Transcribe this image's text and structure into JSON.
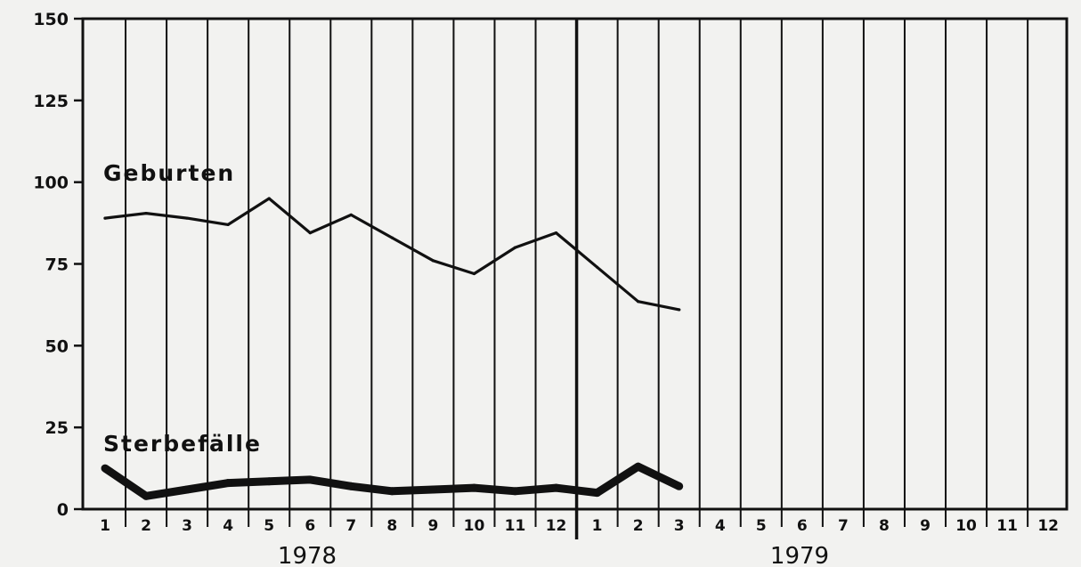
{
  "chart_data": {
    "type": "line",
    "title": "",
    "xlabel": "",
    "ylabel": "",
    "ylim": [
      0,
      150
    ],
    "yticks": [
      0,
      25,
      50,
      75,
      100,
      125,
      150
    ],
    "grid": "vertical",
    "years": [
      {
        "label": "1978",
        "months": [
          "1",
          "2",
          "3",
          "4",
          "5",
          "6",
          "7",
          "8",
          "9",
          "10",
          "11",
          "12"
        ]
      },
      {
        "label": "1979",
        "months": [
          "1",
          "2",
          "3",
          "4",
          "5",
          "6",
          "7",
          "8",
          "9",
          "10",
          "11",
          "12"
        ]
      }
    ],
    "series": [
      {
        "name": "Geburten",
        "style": "thin",
        "values": [
          89,
          90.5,
          89,
          87,
          95,
          84.5,
          90,
          83,
          76,
          72,
          80,
          84.5,
          74,
          63.5,
          61
        ]
      },
      {
        "name": "Sterbefälle",
        "style": "thick",
        "values": [
          12.5,
          4,
          6,
          8,
          8.5,
          9,
          7,
          5.5,
          6,
          6.5,
          5.5,
          6.5,
          5,
          13,
          7
        ]
      }
    ]
  }
}
